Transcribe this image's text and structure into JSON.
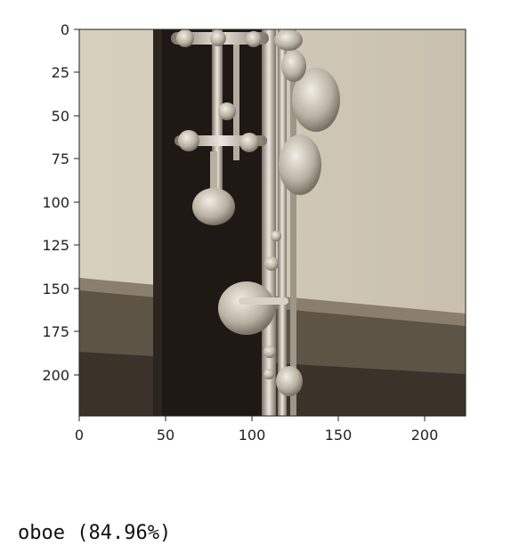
{
  "figure": {
    "x_ticks": [
      "0",
      "50",
      "100",
      "150",
      "200"
    ],
    "y_ticks": [
      "0",
      "25",
      "50",
      "75",
      "100",
      "125",
      "150",
      "175",
      "200"
    ],
    "image_subject": "oboe keys and body in front of a wall"
  },
  "prediction": {
    "label": "oboe (84.96%)"
  },
  "colors": {
    "wall": "#cfc6b4",
    "body": "#1e1914",
    "metal": "#c9c2b4",
    "floor": "#5e5446"
  }
}
